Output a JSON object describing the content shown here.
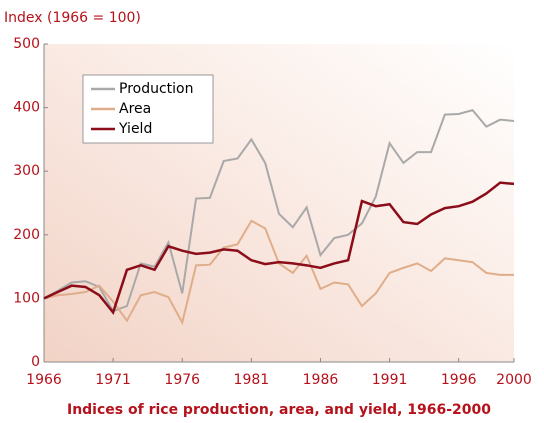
{
  "chart_data": {
    "type": "line",
    "title": "Index (1966 = 100)",
    "caption": "Indices of rice production, area, and yield, 1966-2000",
    "x": [
      1966,
      1967,
      1968,
      1969,
      1970,
      1971,
      1972,
      1973,
      1974,
      1975,
      1976,
      1977,
      1978,
      1979,
      1980,
      1981,
      1982,
      1983,
      1984,
      1985,
      1986,
      1987,
      1988,
      1989,
      1990,
      1991,
      1992,
      1993,
      1994,
      1995,
      1996,
      1997,
      1998,
      1999,
      2000
    ],
    "series": [
      {
        "name": "Production",
        "color": "#a9a9a9",
        "values": [
          100,
          112,
          125,
          127,
          118,
          80,
          88,
          155,
          150,
          188,
          108,
          257,
          258,
          316,
          320,
          350,
          313,
          233,
          212,
          243,
          168,
          195,
          200,
          218,
          260,
          344,
          313,
          330,
          330,
          389,
          390,
          396,
          370,
          381,
          379
        ]
      },
      {
        "name": "Area",
        "color": "#e0ad8a",
        "values": [
          100,
          105,
          107,
          110,
          120,
          95,
          65,
          105,
          110,
          102,
          62,
          152,
          153,
          180,
          185,
          222,
          210,
          155,
          140,
          167,
          115,
          125,
          122,
          88,
          108,
          140,
          148,
          155,
          143,
          163,
          160,
          157,
          140,
          137,
          137
        ]
      },
      {
        "name": "Yield",
        "color": "#8b0d1a",
        "values": [
          100,
          110,
          120,
          118,
          105,
          78,
          145,
          152,
          145,
          182,
          175,
          170,
          172,
          177,
          175,
          160,
          154,
          157,
          155,
          152,
          148,
          155,
          160,
          253,
          245,
          248,
          220,
          217,
          232,
          242,
          245,
          252,
          265,
          282,
          280
        ]
      }
    ],
    "xlim": [
      1966,
      2000
    ],
    "xticks": [
      1966,
      1971,
      1976,
      1981,
      1986,
      1991,
      1996,
      2000
    ],
    "ylim": [
      0,
      500
    ],
    "yticks": [
      0,
      100,
      200,
      300,
      400,
      500
    ],
    "legend": "upper left"
  }
}
